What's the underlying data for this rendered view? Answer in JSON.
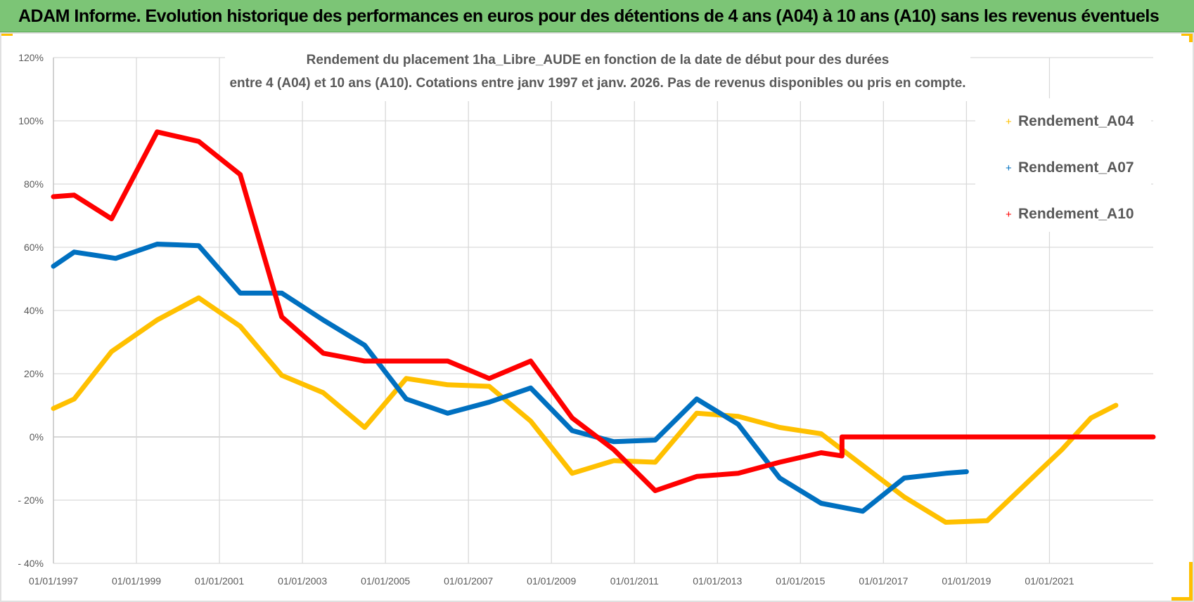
{
  "header": {
    "title": "ADAM Informe. Evolution historique des performances en euros pour des détentions de 4 ans (A04) à 10 ans (A10) sans les revenus éventuels"
  },
  "colors": {
    "header_bg": "#7cc576",
    "a04": "#ffc000",
    "a07": "#0070c0",
    "a10": "#ff0000",
    "grid": "#d9d9d9",
    "accent": "#ffc000"
  },
  "chart_data": {
    "type": "line",
    "title": "Rendement du placement 1ha_Libre_AUDE en fonction de la date de début pour des durées",
    "subtitle": "entre 4 (A04) et 10 ans (A10).  Cotations entre janv 1997 et janv. 2026. Pas de revenus disponibles ou pris en compte.",
    "xlabel": "",
    "ylabel": "",
    "ylim": [
      -40,
      120
    ],
    "xlim": [
      1997,
      2023.5
    ],
    "y_ticks": [
      120,
      100,
      80,
      60,
      40,
      20,
      0,
      -20,
      -40
    ],
    "y_tick_labels": [
      "120%",
      "100%",
      "80%",
      "60%",
      "40%",
      "20%",
      "0%",
      "- 20%",
      "- 40%"
    ],
    "x_ticks": [
      1997,
      1999,
      2001,
      2003,
      2005,
      2007,
      2009,
      2011,
      2013,
      2015,
      2017,
      2019,
      2021
    ],
    "x_tick_labels": [
      "01/01/1997",
      "01/01/1999",
      "01/01/2001",
      "01/01/2003",
      "01/01/2005",
      "01/01/2007",
      "01/01/2009",
      "01/01/2011",
      "01/01/2013",
      "01/01/2015",
      "01/01/2017",
      "01/01/2019",
      "01/01/2021"
    ],
    "legend_position": "top-right",
    "series": [
      {
        "name": "Rendement_A04",
        "color": "#ffc000",
        "points": [
          [
            1997,
            9
          ],
          [
            1997.5,
            12
          ],
          [
            1998.4,
            27
          ],
          [
            1999.5,
            37
          ],
          [
            2000.5,
            44
          ],
          [
            2001.5,
            35
          ],
          [
            2002.5,
            19.5
          ],
          [
            2003.5,
            14
          ],
          [
            2004.5,
            3
          ],
          [
            2005.5,
            18.5
          ],
          [
            2006.5,
            16.5
          ],
          [
            2007.5,
            16
          ],
          [
            2008.5,
            5
          ],
          [
            2009.5,
            -11.5
          ],
          [
            2010.5,
            -7.5
          ],
          [
            2011.5,
            -8
          ],
          [
            2012.5,
            7.5
          ],
          [
            2013.5,
            6.5
          ],
          [
            2014.5,
            3
          ],
          [
            2015.5,
            1
          ],
          [
            2016.5,
            -9
          ],
          [
            2017.5,
            -19
          ],
          [
            2018.5,
            -27
          ],
          [
            2019.5,
            -26.5
          ],
          [
            2020.5,
            -14
          ],
          [
            2021.3,
            -4
          ],
          [
            2022.0,
            6
          ],
          [
            2022.6,
            10
          ]
        ]
      },
      {
        "name": "Rendement_A07",
        "color": "#0070c0",
        "points": [
          [
            1997,
            54
          ],
          [
            1997.5,
            58.5
          ],
          [
            1998.5,
            56.5
          ],
          [
            1999.5,
            61
          ],
          [
            2000.5,
            60.5
          ],
          [
            2001.5,
            45.5
          ],
          [
            2002.5,
            45.5
          ],
          [
            2003.5,
            37
          ],
          [
            2004.5,
            29
          ],
          [
            2005.5,
            12
          ],
          [
            2006.5,
            7.5
          ],
          [
            2007.5,
            11
          ],
          [
            2008.5,
            15.5
          ],
          [
            2009.5,
            2
          ],
          [
            2010.5,
            -1.5
          ],
          [
            2011.5,
            -1
          ],
          [
            2012.5,
            12
          ],
          [
            2013.5,
            4
          ],
          [
            2014.5,
            -13
          ],
          [
            2015.5,
            -21
          ],
          [
            2016.5,
            -23.5
          ],
          [
            2017.5,
            -13
          ],
          [
            2018.5,
            -11.5
          ],
          [
            2019.0,
            -11
          ]
        ]
      },
      {
        "name": "Rendement_A10",
        "color": "#ff0000",
        "points": [
          [
            1997,
            76
          ],
          [
            1997.5,
            76.5
          ],
          [
            1998.4,
            69
          ],
          [
            1999.5,
            96.5
          ],
          [
            2000.5,
            93.5
          ],
          [
            2001.5,
            83
          ],
          [
            2002.5,
            38
          ],
          [
            2003.5,
            26.5
          ],
          [
            2004.5,
            24
          ],
          [
            2005.5,
            24
          ],
          [
            2006.5,
            24
          ],
          [
            2007.5,
            18.5
          ],
          [
            2008.5,
            24
          ],
          [
            2009.5,
            6
          ],
          [
            2010.5,
            -4
          ],
          [
            2011.5,
            -17
          ],
          [
            2012.5,
            -12.5
          ],
          [
            2013.5,
            -11.5
          ],
          [
            2014.5,
            -8
          ],
          [
            2015.5,
            -5
          ],
          [
            2016.0,
            -6
          ],
          [
            2016.0,
            0
          ],
          [
            2020.0,
            0
          ],
          [
            2023.5,
            0
          ]
        ]
      }
    ]
  }
}
